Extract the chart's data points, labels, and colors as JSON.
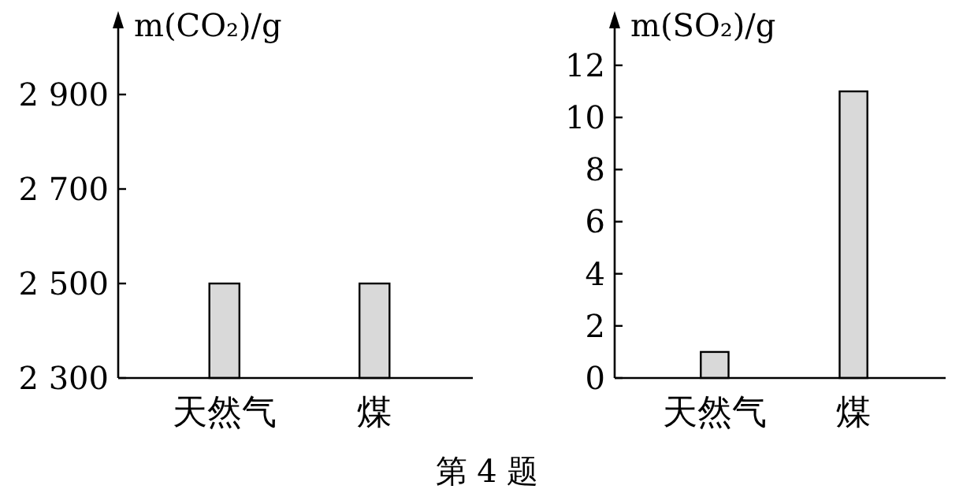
{
  "chart_data": [
    {
      "type": "bar",
      "ylabel": "m(CO₂)/g",
      "categories": [
        "天然气",
        "煤"
      ],
      "values": [
        2500,
        2500
      ],
      "color": "#d9d9d9",
      "ylim": [
        2300,
        3050
      ],
      "yticks": [
        {
          "value": 2300,
          "label": "2 300"
        },
        {
          "value": 2500,
          "label": "2 500"
        },
        {
          "value": 2700,
          "label": "2 700"
        },
        {
          "value": 2900,
          "label": "2 900"
        }
      ],
      "grid": false,
      "annotations": [
        "第 4 题"
      ]
    },
    {
      "type": "bar",
      "ylabel": "m(SO₂)/g",
      "categories": [
        "天然气",
        "煤"
      ],
      "values": [
        1,
        11
      ],
      "color": "#d9d9d9",
      "ylim": [
        0,
        13.6
      ],
      "yticks": [
        0,
        2,
        4,
        6,
        8,
        10,
        12
      ],
      "grid": false
    }
  ]
}
